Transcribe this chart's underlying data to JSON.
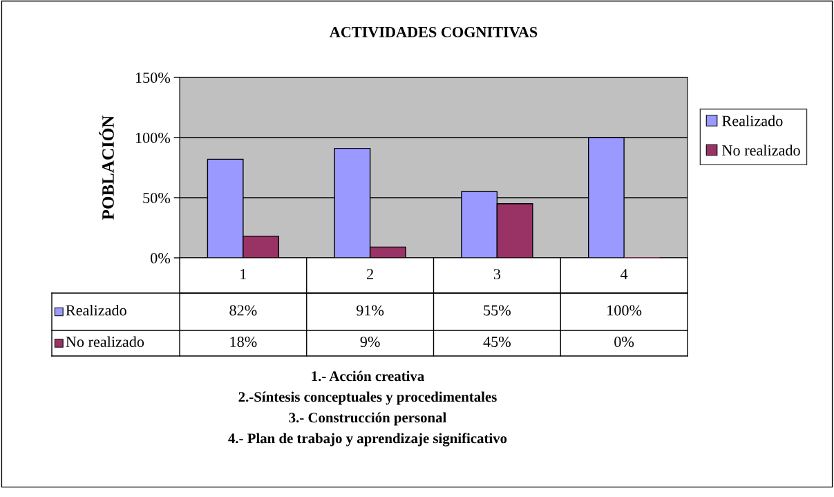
{
  "chart_data": {
    "type": "bar",
    "title": "ACTIVIDADES COGNITIVAS",
    "ylabel": "POBLACIÓN",
    "categories": [
      "1",
      "2",
      "3",
      "4"
    ],
    "series": [
      {
        "name": "Realizado",
        "color": "#9999ff",
        "values": [
          82,
          91,
          55,
          100
        ],
        "value_labels": [
          "82%",
          "91%",
          "55%",
          "100%"
        ]
      },
      {
        "name": "No realizado",
        "color": "#993366",
        "values": [
          18,
          9,
          45,
          0
        ],
        "value_labels": [
          "18%",
          "9%",
          "45%",
          "0%"
        ]
      }
    ],
    "ylim": [
      0,
      150
    ],
    "yticks": [
      {
        "value": 0,
        "label": "0%"
      },
      {
        "value": 50,
        "label": "50%"
      },
      {
        "value": 100,
        "label": "100%"
      },
      {
        "value": 150,
        "label": "150%"
      }
    ],
    "grid": "y",
    "legend": "right",
    "annotations": [
      "1.- Acción creativa",
      "2.-Síntesis conceptuales y procedimentales",
      "3.- Construcción personal",
      "4.- Plan de trabajo y aprendizaje significativo"
    ]
  }
}
